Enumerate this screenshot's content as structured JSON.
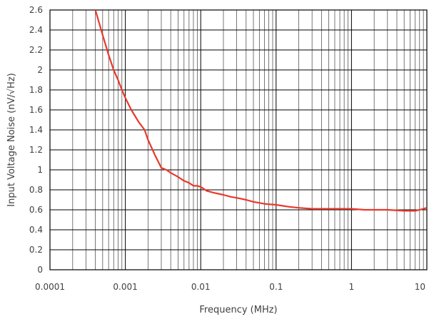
{
  "chart_data": {
    "type": "line",
    "title": "",
    "xlabel": "Frequency (MHz)",
    "ylabel": "Input Voltage Noise (nV/√Hz)",
    "x_scale": "log",
    "xlim": [
      0.0001,
      10
    ],
    "ylim": [
      0,
      2.6
    ],
    "x_ticks": [
      0.0001,
      0.001,
      0.01,
      0.1,
      1,
      10
    ],
    "x_tick_labels": [
      "0.0001",
      "0.001",
      "0.01",
      "0.1",
      "1",
      "10"
    ],
    "y_ticks": [
      0,
      0.2,
      0.4,
      0.6,
      0.8,
      1,
      1.2,
      1.4,
      1.6,
      1.8,
      2,
      2.2,
      2.4,
      2.6
    ],
    "y_tick_labels": [
      "0",
      "0.2",
      "0.4",
      "0.6",
      "0.8",
      "1",
      "1.2",
      "1.4",
      "1.6",
      "1.8",
      "2",
      "2.2",
      "2.4",
      "2.6"
    ],
    "grid": true,
    "legend": "none",
    "colors": {
      "line": "#e8392b",
      "grid": "#000000",
      "background": "#ffffff",
      "text": "#404040"
    },
    "series": [
      {
        "x": [
          0.0004,
          0.0005,
          0.0006,
          0.0007,
          0.0008,
          0.0009,
          0.001,
          0.0012,
          0.0015,
          0.0018,
          0.002,
          0.0025,
          0.003,
          0.0035,
          0.004,
          0.005,
          0.006,
          0.007,
          0.008,
          0.009,
          0.01,
          0.012,
          0.015,
          0.02,
          0.025,
          0.03,
          0.04,
          0.05,
          0.07,
          0.1,
          0.15,
          0.2,
          0.3,
          0.5,
          0.7,
          1,
          1.5,
          2,
          3,
          5,
          7,
          8,
          10
        ],
        "y": [
          2.6,
          2.35,
          2.15,
          2.0,
          1.9,
          1.8,
          1.72,
          1.6,
          1.48,
          1.4,
          1.3,
          1.14,
          1.02,
          1.0,
          0.97,
          0.93,
          0.89,
          0.87,
          0.84,
          0.84,
          0.83,
          0.79,
          0.77,
          0.75,
          0.73,
          0.72,
          0.7,
          0.68,
          0.66,
          0.65,
          0.63,
          0.62,
          0.61,
          0.61,
          0.61,
          0.61,
          0.6,
          0.6,
          0.6,
          0.59,
          0.59,
          0.6,
          0.62
        ]
      }
    ]
  }
}
